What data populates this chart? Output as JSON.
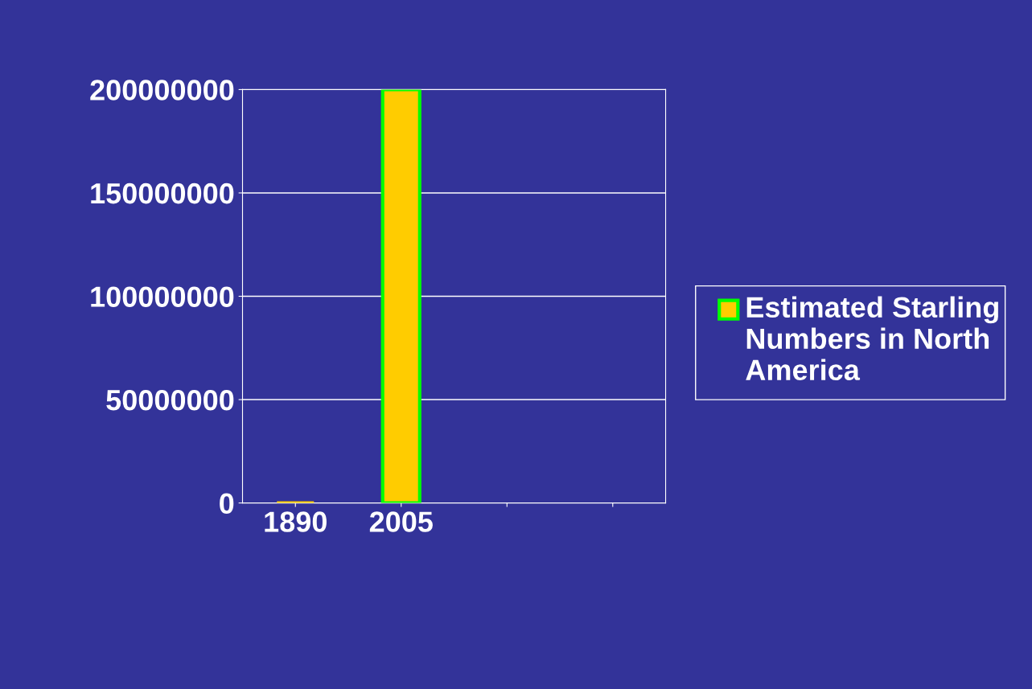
{
  "chart_data": {
    "type": "bar",
    "categories": [
      "1890",
      "2005",
      null,
      null
    ],
    "series": [
      {
        "name": "Estimated Starling Numbers in North America",
        "color": "#ffcc00",
        "values": [
          0,
          200000000,
          null,
          null
        ]
      }
    ],
    "ylim": [
      0,
      200000000
    ],
    "yticks": [
      0,
      50000000,
      100000000,
      150000000,
      200000000
    ],
    "grid": "y",
    "legend": "right"
  }
}
